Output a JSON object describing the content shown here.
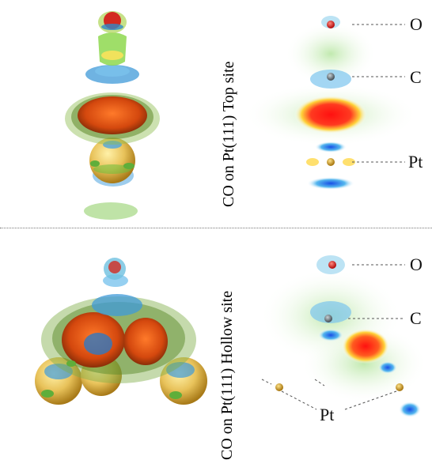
{
  "panels": {
    "top": {
      "caption": "CO on Pt(111) Top site",
      "atoms": {
        "o": "O",
        "c": "C",
        "pt": "Pt"
      }
    },
    "bottom": {
      "caption": "CO on Pt(111) Hollow site",
      "atoms": {
        "o": "O",
        "c": "C",
        "pt": "Pt"
      }
    }
  },
  "colors": {
    "oxygen": "#d8241c",
    "carbon": "#6e7a80",
    "platinum": "#d9a52b",
    "isosurface_green": "#86c441",
    "isosurface_blue": "#4aa2dc",
    "isosurface_orange": "#e35a1a",
    "map_red": "#ff1a1a",
    "map_blue": "#1560e0"
  }
}
